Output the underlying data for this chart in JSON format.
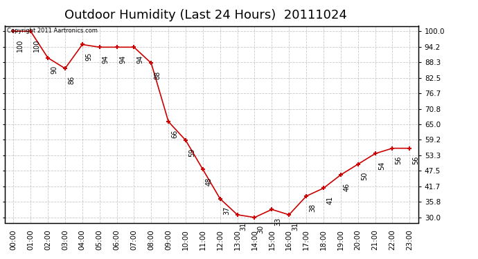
{
  "title": "Outdoor Humidity (Last 24 Hours)  20111024",
  "copyright_text": "Copyright 2011 Aartronics.com",
  "x_labels": [
    "00:00",
    "01:00",
    "02:00",
    "03:00",
    "04:00",
    "05:00",
    "06:00",
    "07:00",
    "08:00",
    "09:00",
    "10:00",
    "11:00",
    "12:00",
    "13:00",
    "14:00",
    "15:00",
    "16:00",
    "17:00",
    "18:00",
    "19:00",
    "20:00",
    "21:00",
    "22:00",
    "23:00"
  ],
  "y_values": [
    100,
    100,
    90,
    86,
    95,
    94,
    94,
    94,
    88,
    66,
    59,
    48,
    37,
    31,
    30,
    33,
    31,
    38,
    41,
    46,
    50,
    54,
    56,
    56
  ],
  "y_ticks": [
    30.0,
    35.8,
    41.7,
    47.5,
    53.3,
    59.2,
    65.0,
    70.8,
    76.7,
    82.5,
    88.3,
    94.2,
    100.0
  ],
  "line_color": "#cc0000",
  "marker_color": "#cc0000",
  "background_color": "#ffffff",
  "grid_color": "#bbbbbb",
  "title_fontsize": 13,
  "label_fontsize": 7.5,
  "annotation_fontsize": 7
}
